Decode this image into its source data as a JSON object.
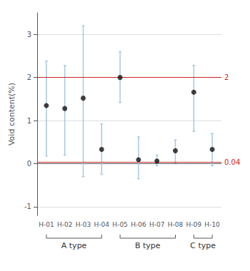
{
  "chart_data": {
    "type": "scatter",
    "categories": [
      "H-01",
      "H-02",
      "H-03",
      "H-04",
      "H-05",
      "H-06",
      "H-07",
      "H-08",
      "H-09",
      "H-10"
    ],
    "values": [
      1.35,
      1.28,
      1.52,
      0.33,
      2.0,
      0.09,
      0.06,
      0.3,
      1.66,
      0.33
    ],
    "ci_lower": [
      0.18,
      0.2,
      -0.3,
      -0.25,
      1.42,
      -0.35,
      -0.05,
      0.02,
      0.75,
      -0.05
    ],
    "ci_upper": [
      2.38,
      2.28,
      3.2,
      0.92,
      2.6,
      0.62,
      0.2,
      0.55,
      2.28,
      0.7
    ],
    "color": "#111111",
    "error_color": "#a8c8dc",
    "ylabel": "Void content(%)",
    "ylim": [
      -1.2,
      3.5
    ],
    "yticks": [
      -1,
      0,
      1,
      2,
      3
    ],
    "grid": true,
    "hlines": [
      {
        "value": 2.0,
        "label": "2",
        "color": "#cc2222"
      },
      {
        "value": 0.04,
        "label": "0.04",
        "color": "#cc2222"
      }
    ],
    "groups": [
      {
        "label": "A type",
        "start": "H-01",
        "end": "H-04"
      },
      {
        "label": "B type",
        "start": "H-05",
        "end": "H-08"
      },
      {
        "label": "C type",
        "start": "H-09",
        "end": "H-10"
      }
    ]
  }
}
